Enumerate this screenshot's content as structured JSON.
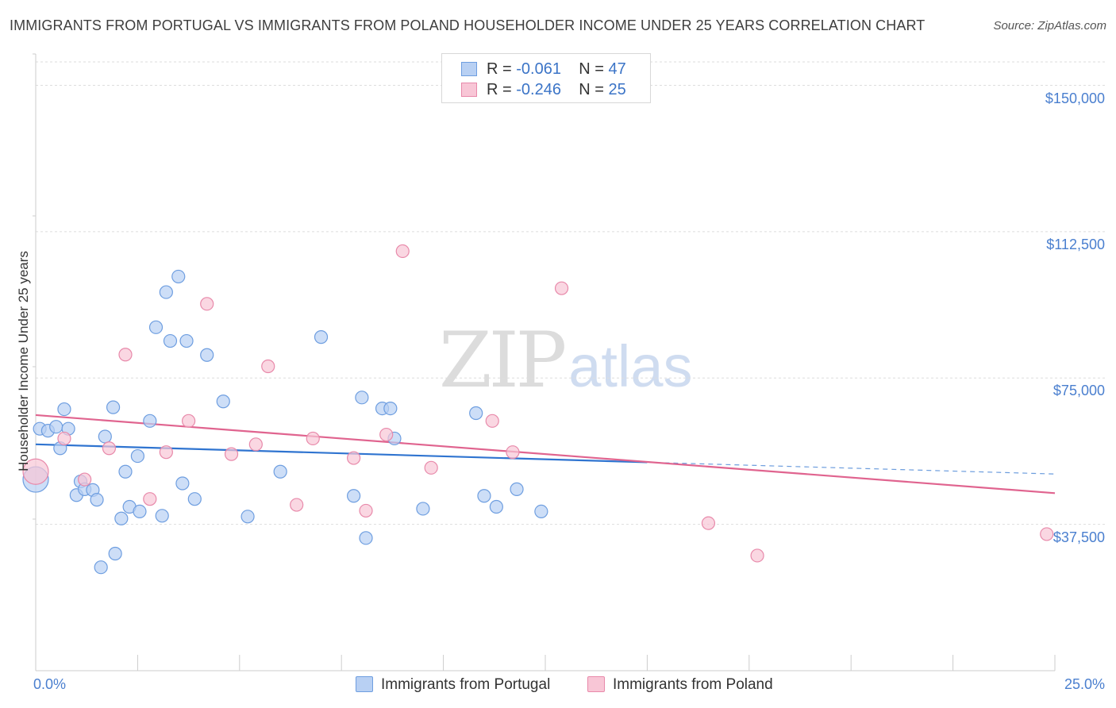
{
  "header": {
    "title": "IMMIGRANTS FROM PORTUGAL VS IMMIGRANTS FROM POLAND HOUSEHOLDER INCOME UNDER 25 YEARS CORRELATION CHART",
    "source": "Source: ZipAtlas.com"
  },
  "watermark": {
    "zip": "ZIP",
    "atlas": "atlas"
  },
  "stats": {
    "r_label": "R =",
    "n_label": "N =",
    "portugal": {
      "r": "-0.061",
      "n": "47"
    },
    "poland": {
      "r": "-0.246",
      "n": "25"
    }
  },
  "legend": {
    "portugal": "Immigrants from Portugal",
    "poland": "Immigrants from Poland"
  },
  "colors": {
    "portugal_fill": "#b8d0f3",
    "portugal_stroke": "#6e9ee0",
    "portugal_line": "#2f74d0",
    "poland_fill": "#f8c6d6",
    "poland_stroke": "#e889aa",
    "poland_line": "#e0648f",
    "tick_text": "#4a7fcf",
    "grid": "#dddddd"
  },
  "chart_data": {
    "type": "scatter",
    "title": "IMMIGRANTS FROM PORTUGAL VS IMMIGRANTS FROM POLAND HOUSEHOLDER INCOME UNDER 25 YEARS CORRELATION CHART",
    "xlabel": "",
    "ylabel": "Householder Income Under 25 years",
    "xlim": [
      0,
      25
    ],
    "ylim": [
      0,
      156000
    ],
    "x_tick_labels": [
      "0.0%",
      "25.0%"
    ],
    "y_ticks": [
      37500,
      75000,
      112500,
      150000
    ],
    "y_tick_labels": [
      "$37,500",
      "$75,000",
      "$112,500",
      "$150,000"
    ],
    "legend_position": "bottom",
    "series": [
      {
        "name": "Immigrants from Portugal",
        "r": -0.061,
        "n": 47,
        "trend": {
          "x": [
            0,
            15
          ],
          "y": [
            58000,
            53400
          ]
        },
        "trend_dashed": {
          "x": [
            15,
            25
          ],
          "y": [
            53400,
            50400
          ]
        },
        "points": [
          {
            "x": 0.0,
            "y": 49000,
            "big": true
          },
          {
            "x": 0.1,
            "y": 62000
          },
          {
            "x": 0.3,
            "y": 61500
          },
          {
            "x": 0.5,
            "y": 62500
          },
          {
            "x": 0.6,
            "y": 57000
          },
          {
            "x": 0.7,
            "y": 67000
          },
          {
            "x": 0.8,
            "y": 62000
          },
          {
            "x": 1.0,
            "y": 45000
          },
          {
            "x": 1.1,
            "y": 48500
          },
          {
            "x": 1.2,
            "y": 46500
          },
          {
            "x": 1.4,
            "y": 46300
          },
          {
            "x": 1.5,
            "y": 43800
          },
          {
            "x": 1.6,
            "y": 26500
          },
          {
            "x": 1.7,
            "y": 60000
          },
          {
            "x": 1.9,
            "y": 67500
          },
          {
            "x": 1.95,
            "y": 30000
          },
          {
            "x": 2.1,
            "y": 39000
          },
          {
            "x": 2.2,
            "y": 51000
          },
          {
            "x": 2.3,
            "y": 42000
          },
          {
            "x": 2.5,
            "y": 55000
          },
          {
            "x": 2.55,
            "y": 40800
          },
          {
            "x": 2.8,
            "y": 64000
          },
          {
            "x": 2.95,
            "y": 88000
          },
          {
            "x": 3.1,
            "y": 39700
          },
          {
            "x": 3.2,
            "y": 97000
          },
          {
            "x": 3.3,
            "y": 84500
          },
          {
            "x": 3.5,
            "y": 101000
          },
          {
            "x": 3.6,
            "y": 48000
          },
          {
            "x": 3.7,
            "y": 84500
          },
          {
            "x": 3.9,
            "y": 44000
          },
          {
            "x": 4.2,
            "y": 80900
          },
          {
            "x": 4.6,
            "y": 69000
          },
          {
            "x": 5.2,
            "y": 39500
          },
          {
            "x": 6.0,
            "y": 51000
          },
          {
            "x": 7.0,
            "y": 85500
          },
          {
            "x": 7.8,
            "y": 44800
          },
          {
            "x": 8.0,
            "y": 70000
          },
          {
            "x": 8.1,
            "y": 34000
          },
          {
            "x": 8.5,
            "y": 67200
          },
          {
            "x": 8.7,
            "y": 67200
          },
          {
            "x": 8.8,
            "y": 59500
          },
          {
            "x": 9.5,
            "y": 41500
          },
          {
            "x": 10.8,
            "y": 66000
          },
          {
            "x": 11.0,
            "y": 44800
          },
          {
            "x": 11.3,
            "y": 42000
          },
          {
            "x": 11.8,
            "y": 46500
          },
          {
            "x": 12.4,
            "y": 40800
          }
        ]
      },
      {
        "name": "Immigrants from Poland",
        "r": -0.246,
        "n": 25,
        "trend": {
          "x": [
            0,
            25
          ],
          "y": [
            65500,
            45500
          ]
        },
        "points": [
          {
            "x": 0.0,
            "y": 51000,
            "big": true
          },
          {
            "x": 0.7,
            "y": 59500
          },
          {
            "x": 1.2,
            "y": 49000
          },
          {
            "x": 1.8,
            "y": 57000
          },
          {
            "x": 2.2,
            "y": 81000
          },
          {
            "x": 2.8,
            "y": 44000
          },
          {
            "x": 3.2,
            "y": 56000
          },
          {
            "x": 3.75,
            "y": 64000
          },
          {
            "x": 4.2,
            "y": 94000
          },
          {
            "x": 4.8,
            "y": 55500
          },
          {
            "x": 5.4,
            "y": 58000
          },
          {
            "x": 5.7,
            "y": 78000
          },
          {
            "x": 6.4,
            "y": 42500
          },
          {
            "x": 6.8,
            "y": 59500
          },
          {
            "x": 7.8,
            "y": 54500
          },
          {
            "x": 8.1,
            "y": 41000
          },
          {
            "x": 8.6,
            "y": 60500
          },
          {
            "x": 9.0,
            "y": 107500
          },
          {
            "x": 9.7,
            "y": 52000
          },
          {
            "x": 11.2,
            "y": 64000
          },
          {
            "x": 11.7,
            "y": 56000
          },
          {
            "x": 12.9,
            "y": 98000
          },
          {
            "x": 16.5,
            "y": 37800
          },
          {
            "x": 17.7,
            "y": 29500
          },
          {
            "x": 24.8,
            "y": 35000
          }
        ]
      }
    ]
  }
}
